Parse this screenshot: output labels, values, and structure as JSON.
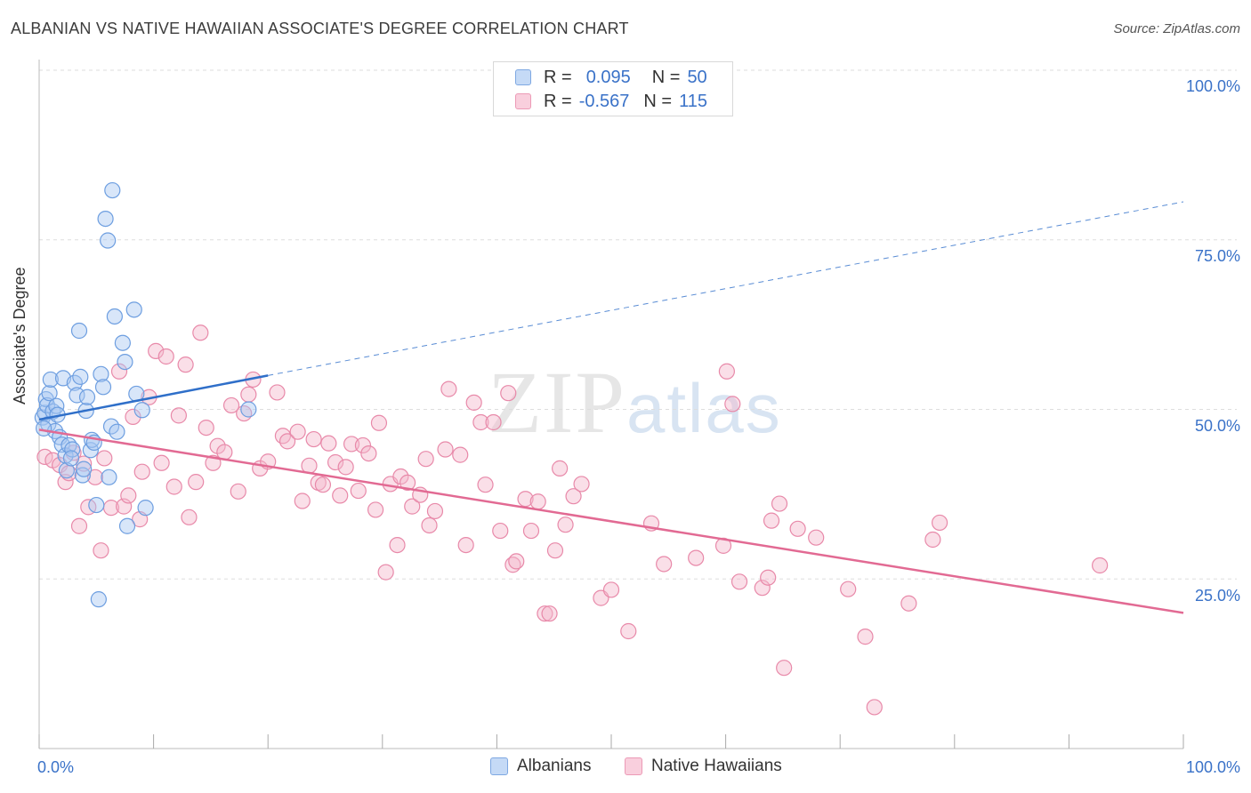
{
  "title": "ALBANIAN VS NATIVE HAWAIIAN ASSOCIATE'S DEGREE CORRELATION CHART",
  "source": "Source: ZipAtlas.com",
  "watermark": {
    "zip": "ZIP",
    "atlas": "atlas"
  },
  "legend": {
    "rows": [
      {
        "r_label": "R =",
        "r_value": "0.095",
        "n_label": "N =",
        "n_value": "50",
        "color": "#a9c8f2"
      },
      {
        "r_label": "R =",
        "r_value": "-0.567",
        "n_label": "N =",
        "n_value": "115",
        "color": "#f5b9cd"
      }
    ]
  },
  "colors": {
    "blue_fill": "#a9c8f2",
    "blue_stroke": "#6d9ee0",
    "blue_line": "#2f6fc9",
    "pink_fill": "#f5b9cd",
    "pink_stroke": "#e889a9",
    "pink_line": "#e26a93",
    "tick_text": "#3a72c8",
    "grid": "#dddddd"
  },
  "chart_data": {
    "type": "scatter",
    "title": "ALBANIAN VS NATIVE HAWAIIAN ASSOCIATE'S DEGREE CORRELATION CHART",
    "xlabel": "",
    "ylabel": "Associate's Degree",
    "xlim": [
      0,
      100
    ],
    "ylim": [
      0,
      100
    ],
    "x_tick_labels": [
      "0.0%",
      "100.0%"
    ],
    "y_tick_labels": [
      "25.0%",
      "50.0%",
      "75.0%",
      "100.0%"
    ],
    "y_ticks": [
      25,
      50,
      75,
      100
    ],
    "grid": true,
    "legend_position": "bottom",
    "series": [
      {
        "name": "Albanians",
        "trend": {
          "x": [
            0,
            20
          ],
          "y": [
            48.5,
            55
          ],
          "dashed_to": [
            100,
            80.6
          ]
        },
        "points": [
          [
            0.3,
            48.8
          ],
          [
            0.5,
            49.5
          ],
          [
            0.6,
            51.5
          ],
          [
            0.7,
            50.6
          ],
          [
            0.8,
            47.8
          ],
          [
            0.9,
            52.4
          ],
          [
            1.0,
            54.4
          ],
          [
            1.2,
            49.7
          ],
          [
            1.4,
            46.8
          ],
          [
            1.5,
            50.5
          ],
          [
            1.6,
            49.2
          ],
          [
            1.8,
            45.9
          ],
          [
            2.0,
            44.8
          ],
          [
            2.1,
            54.6
          ],
          [
            2.3,
            43.2
          ],
          [
            2.4,
            41.0
          ],
          [
            2.6,
            44.7
          ],
          [
            2.9,
            44.1
          ],
          [
            3.1,
            53.9
          ],
          [
            3.3,
            52.1
          ],
          [
            3.5,
            61.6
          ],
          [
            3.6,
            54.8
          ],
          [
            3.8,
            40.3
          ],
          [
            3.9,
            41.2
          ],
          [
            4.1,
            49.8
          ],
          [
            4.2,
            51.8
          ],
          [
            4.5,
            44.0
          ],
          [
            4.6,
            45.5
          ],
          [
            4.8,
            45.1
          ],
          [
            5.0,
            35.9
          ],
          [
            5.2,
            22.0
          ],
          [
            5.4,
            55.2
          ],
          [
            5.6,
            53.3
          ],
          [
            5.8,
            78.1
          ],
          [
            6.0,
            74.9
          ],
          [
            6.1,
            40.0
          ],
          [
            6.3,
            47.5
          ],
          [
            6.4,
            82.3
          ],
          [
            6.6,
            63.7
          ],
          [
            6.8,
            46.7
          ],
          [
            7.3,
            59.8
          ],
          [
            7.5,
            57.0
          ],
          [
            7.7,
            32.8
          ],
          [
            8.3,
            64.7
          ],
          [
            8.5,
            52.3
          ],
          [
            9.0,
            49.9
          ],
          [
            9.3,
            35.5
          ],
          [
            18.3,
            50.0
          ],
          [
            0.4,
            47.2
          ],
          [
            2.8,
            42.8
          ]
        ]
      },
      {
        "name": "Native Hawaiians",
        "trend": {
          "x": [
            0,
            100
          ],
          "y": [
            47,
            20
          ]
        },
        "points": [
          [
            0.5,
            43.0
          ],
          [
            1.2,
            42.5
          ],
          [
            1.8,
            41.8
          ],
          [
            2.3,
            39.3
          ],
          [
            2.6,
            40.6
          ],
          [
            3.0,
            43.6
          ],
          [
            3.5,
            32.8
          ],
          [
            3.9,
            42.0
          ],
          [
            4.3,
            35.6
          ],
          [
            4.9,
            40.0
          ],
          [
            5.4,
            29.2
          ],
          [
            5.7,
            42.8
          ],
          [
            6.3,
            35.5
          ],
          [
            7.0,
            55.6
          ],
          [
            7.4,
            35.7
          ],
          [
            7.8,
            37.3
          ],
          [
            8.2,
            48.9
          ],
          [
            8.8,
            33.8
          ],
          [
            9.0,
            40.8
          ],
          [
            9.6,
            51.8
          ],
          [
            10.2,
            58.6
          ],
          [
            10.7,
            42.1
          ],
          [
            11.1,
            57.8
          ],
          [
            11.8,
            38.6
          ],
          [
            12.2,
            49.1
          ],
          [
            12.8,
            56.6
          ],
          [
            13.1,
            34.1
          ],
          [
            13.7,
            39.3
          ],
          [
            14.1,
            61.3
          ],
          [
            14.6,
            47.3
          ],
          [
            15.2,
            42.1
          ],
          [
            15.6,
            44.6
          ],
          [
            16.2,
            43.7
          ],
          [
            16.8,
            50.6
          ],
          [
            17.4,
            37.9
          ],
          [
            17.9,
            49.4
          ],
          [
            18.3,
            52.2
          ],
          [
            18.7,
            54.4
          ],
          [
            19.3,
            41.3
          ],
          [
            20.0,
            42.3
          ],
          [
            20.8,
            52.5
          ],
          [
            21.3,
            46.1
          ],
          [
            21.7,
            45.3
          ],
          [
            22.6,
            46.7
          ],
          [
            23.0,
            36.5
          ],
          [
            23.6,
            41.7
          ],
          [
            24.0,
            45.6
          ],
          [
            24.4,
            39.2
          ],
          [
            24.8,
            38.9
          ],
          [
            25.3,
            45.0
          ],
          [
            25.9,
            42.2
          ],
          [
            26.3,
            37.3
          ],
          [
            26.8,
            41.5
          ],
          [
            27.3,
            44.9
          ],
          [
            27.9,
            38.0
          ],
          [
            28.3,
            44.7
          ],
          [
            28.8,
            43.5
          ],
          [
            29.4,
            35.2
          ],
          [
            29.7,
            48.0
          ],
          [
            30.3,
            26.0
          ],
          [
            30.7,
            39.0
          ],
          [
            31.3,
            30.0
          ],
          [
            31.6,
            40.1
          ],
          [
            32.2,
            39.2
          ],
          [
            32.6,
            35.7
          ],
          [
            33.3,
            37.4
          ],
          [
            33.8,
            42.7
          ],
          [
            34.1,
            32.9
          ],
          [
            34.6,
            35.0
          ],
          [
            35.5,
            44.1
          ],
          [
            35.8,
            53.0
          ],
          [
            36.8,
            43.3
          ],
          [
            37.3,
            30.0
          ],
          [
            38.0,
            51.0
          ],
          [
            38.6,
            48.1
          ],
          [
            39.0,
            38.9
          ],
          [
            39.7,
            48.1
          ],
          [
            40.3,
            32.1
          ],
          [
            41.0,
            52.4
          ],
          [
            41.4,
            27.1
          ],
          [
            41.7,
            27.6
          ],
          [
            42.5,
            36.8
          ],
          [
            43.0,
            32.1
          ],
          [
            43.6,
            36.4
          ],
          [
            44.2,
            19.9
          ],
          [
            44.6,
            19.9
          ],
          [
            45.1,
            29.2
          ],
          [
            45.5,
            41.3
          ],
          [
            46.0,
            33.0
          ],
          [
            46.7,
            37.2
          ],
          [
            47.4,
            39.0
          ],
          [
            49.1,
            22.2
          ],
          [
            50.0,
            23.4
          ],
          [
            51.5,
            17.3
          ],
          [
            53.5,
            33.2
          ],
          [
            54.6,
            27.2
          ],
          [
            57.4,
            28.1
          ],
          [
            59.8,
            29.9
          ],
          [
            60.1,
            55.6
          ],
          [
            60.6,
            50.8
          ],
          [
            61.2,
            24.6
          ],
          [
            63.2,
            23.7
          ],
          [
            63.7,
            25.2
          ],
          [
            64.0,
            33.6
          ],
          [
            64.7,
            36.1
          ],
          [
            65.1,
            11.9
          ],
          [
            66.3,
            32.4
          ],
          [
            67.9,
            31.1
          ],
          [
            70.7,
            23.5
          ],
          [
            72.2,
            16.5
          ],
          [
            73.0,
            6.1
          ],
          [
            76.0,
            21.4
          ],
          [
            78.1,
            30.8
          ],
          [
            78.7,
            33.3
          ],
          [
            92.7,
            27.0
          ]
        ]
      }
    ]
  }
}
